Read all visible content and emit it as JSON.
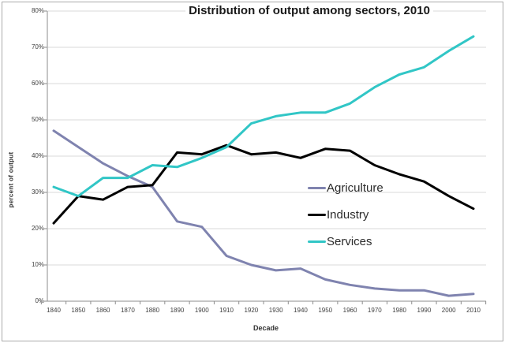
{
  "chart_data": {
    "type": "line",
    "title": "Distribution of output among sectors, 2010",
    "xlabel": "Decade",
    "ylabel": "percent of output",
    "ylim": [
      0,
      80
    ],
    "ytick_step": 10,
    "ytick_labels": [
      "0%",
      "10%",
      "20%",
      "30%",
      "40%",
      "50%",
      "60%",
      "70%",
      "80%"
    ],
    "grid": true,
    "legend_position": "middle-right",
    "categories": [
      "1840",
      "1850",
      "1860",
      "1870",
      "1880",
      "1890",
      "1900",
      "1910",
      "1920",
      "1930",
      "1940",
      "1950",
      "1960",
      "1970",
      "1980",
      "1990",
      "2000",
      "2010"
    ],
    "series": [
      {
        "name": "Agriculture",
        "color": "#7F83AF",
        "values": [
          47,
          42.5,
          38,
          34.5,
          31.5,
          22,
          20.5,
          12.5,
          10,
          8.5,
          9,
          6,
          4.5,
          3.5,
          3,
          3,
          1.5,
          2
        ]
      },
      {
        "name": "Industry",
        "color": "#000000",
        "values": [
          21.5,
          29,
          28,
          31.5,
          32,
          41,
          40.5,
          43,
          40.5,
          41,
          39.5,
          42,
          41.5,
          37.5,
          35,
          33,
          29,
          25.5
        ]
      },
      {
        "name": "Services",
        "color": "#31C6C6",
        "values": [
          31.5,
          29,
          34,
          34,
          37.5,
          37,
          39.5,
          42.5,
          49,
          51,
          52,
          52,
          54.5,
          59,
          62.5,
          64.5,
          69,
          73
        ]
      }
    ]
  }
}
